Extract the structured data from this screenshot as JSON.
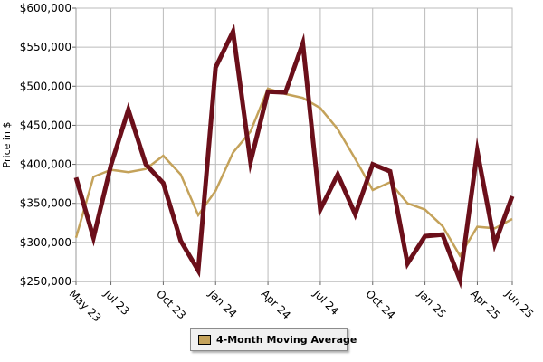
{
  "chart_data": {
    "type": "line",
    "title": "",
    "xlabel": "",
    "ylabel": "Price in $",
    "ylim": [
      250000,
      600000
    ],
    "y_ticks": [
      250000,
      300000,
      350000,
      400000,
      450000,
      500000,
      550000,
      600000
    ],
    "y_tick_labels": [
      "$250,000",
      "$300,000",
      "$350,000",
      "$400,000",
      "$450,000",
      "$500,000",
      "$550,000",
      "$600,000"
    ],
    "x": [
      "May 23",
      "Jun 23",
      "Jul 23",
      "Aug 23",
      "Sep 23",
      "Oct 23",
      "Nov 23",
      "Dec 23",
      "Jan 24",
      "Feb 24",
      "Mar 24",
      "Apr 24",
      "May 24",
      "Jun 24",
      "Jul 24",
      "Aug 24",
      "Sep 24",
      "Oct 24",
      "Nov 24",
      "Dec 24",
      "Jan 25",
      "Feb 25",
      "Mar 25",
      "Apr 25",
      "May 25",
      "Jun 25"
    ],
    "x_tick_labels": [
      "May 23",
      "Jul 23",
      "Oct 23",
      "Jan 24",
      "Apr 24",
      "Jul 24",
      "Oct 24",
      "Jan 25",
      "Apr 25",
      "Jun 25"
    ],
    "x_tick_index": [
      0,
      2,
      5,
      8,
      11,
      14,
      17,
      20,
      23,
      25
    ],
    "grid": true,
    "legend_position": "bottom-center",
    "series": [
      {
        "name": "",
        "color": "#6b0f1a",
        "values": [
          383000,
          306000,
          399000,
          470000,
          400000,
          376000,
          302000,
          264000,
          524000,
          570000,
          403000,
          493000,
          492000,
          555000,
          342000,
          387000,
          336000,
          400000,
          391000,
          273000,
          308000,
          310000,
          252000,
          417000,
          298000,
          359000
        ]
      },
      {
        "name": "4-Month Moving Average",
        "color": "#c4a25a",
        "values": [
          306000,
          384000,
          393000,
          390000,
          394000,
          411000,
          387000,
          335000,
          366000,
          415000,
          442000,
          497000,
          490000,
          485000,
          472000,
          445000,
          407000,
          367000,
          377000,
          350000,
          342000,
          321000,
          283000,
          320000,
          318000,
          330000
        ]
      }
    ]
  }
}
